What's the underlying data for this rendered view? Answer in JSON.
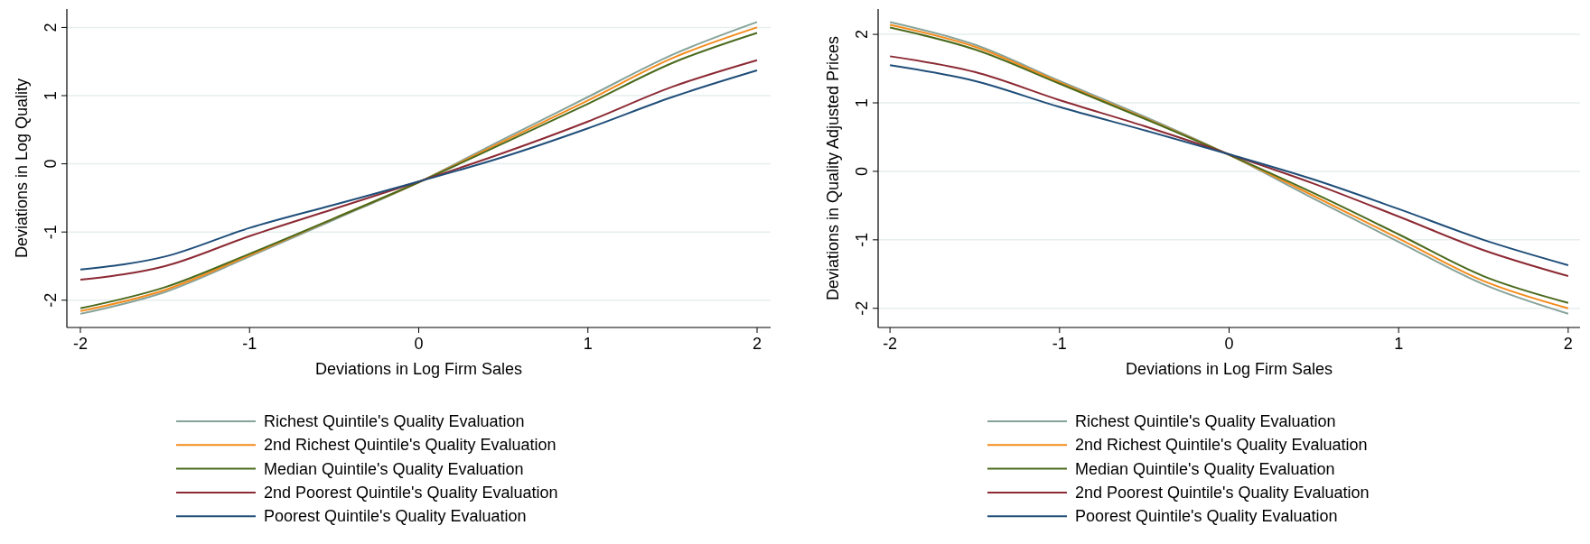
{
  "chart_data": [
    {
      "type": "line",
      "xlabel": "Deviations in Log Firm Sales",
      "ylabel": "Deviations in Log Quality",
      "x": [
        -2,
        -1.5,
        -1,
        -0.5,
        0,
        0.5,
        1,
        1.5,
        2
      ],
      "xlim": [
        -2.08,
        2.08
      ],
      "ylim": [
        -2.4,
        2.27
      ],
      "xticks": [
        -2,
        -1,
        0,
        1,
        2
      ],
      "yticks": [
        -2,
        -1,
        0,
        1,
        2
      ],
      "grid": "y",
      "legend": "bottom",
      "series": [
        {
          "name": "Richest Quintile's Quality Evaluation",
          "color": "#86a39a",
          "values": [
            -2.2,
            -1.88,
            -1.36,
            -0.82,
            -0.27,
            0.36,
            0.98,
            1.6,
            2.08
          ]
        },
        {
          "name": "2nd Richest Quintile's Quality Evaluation",
          "color": "#f48b1c",
          "values": [
            -2.16,
            -1.85,
            -1.34,
            -0.8,
            -0.27,
            0.33,
            0.93,
            1.55,
            2.0
          ]
        },
        {
          "name": "Median Quintile's Quality Evaluation",
          "color": "#4a6a1d",
          "values": [
            -2.12,
            -1.81,
            -1.32,
            -0.8,
            -0.27,
            0.3,
            0.88,
            1.48,
            1.92
          ]
        },
        {
          "name": "2nd Poorest Quintile's Quality Evaluation",
          "color": "#8c2a34",
          "values": [
            -1.7,
            -1.5,
            -1.06,
            -0.66,
            -0.26,
            0.16,
            0.62,
            1.13,
            1.52
          ]
        },
        {
          "name": "Poorest Quintile's Quality Evaluation",
          "color": "#1f4e79",
          "values": [
            -1.55,
            -1.36,
            -0.94,
            -0.6,
            -0.26,
            0.1,
            0.52,
            0.98,
            1.37
          ]
        }
      ]
    },
    {
      "type": "line",
      "xlabel": "Deviations in Log Firm Sales",
      "ylabel": "Deviations in Quality Adjusted Prices",
      "x": [
        -2,
        -1.5,
        -1,
        -0.5,
        0,
        0.5,
        1,
        1.5,
        2
      ],
      "xlim": [
        -2.07,
        2.07
      ],
      "ylim": [
        -2.28,
        2.37
      ],
      "xticks": [
        -2,
        -1,
        0,
        1,
        2
      ],
      "yticks": [
        -2,
        -1,
        0,
        1,
        2
      ],
      "grid": "y",
      "legend": "bottom",
      "series": [
        {
          "name": "Richest Quintile's Quality Evaluation",
          "color": "#86a39a",
          "values": [
            2.18,
            1.85,
            1.32,
            0.8,
            0.24,
            -0.4,
            -1.03,
            -1.65,
            -2.08
          ]
        },
        {
          "name": "2nd Richest Quintile's Quality Evaluation",
          "color": "#f48b1c",
          "values": [
            2.14,
            1.82,
            1.3,
            0.78,
            0.24,
            -0.36,
            -0.98,
            -1.6,
            -2.0
          ]
        },
        {
          "name": "Median Quintile's Quality Evaluation",
          "color": "#4a6a1d",
          "values": [
            2.1,
            1.78,
            1.28,
            0.77,
            0.24,
            -0.32,
            -0.92,
            -1.53,
            -1.92
          ]
        },
        {
          "name": "2nd Poorest Quintile's Quality Evaluation",
          "color": "#8c2a34",
          "values": [
            1.68,
            1.45,
            1.04,
            0.66,
            0.25,
            -0.18,
            -0.66,
            -1.15,
            -1.53
          ]
        },
        {
          "name": "Poorest Quintile's Quality Evaluation",
          "color": "#1f4e79",
          "values": [
            1.55,
            1.32,
            0.94,
            0.6,
            0.25,
            -0.12,
            -0.55,
            -1.0,
            -1.37
          ]
        }
      ]
    }
  ]
}
